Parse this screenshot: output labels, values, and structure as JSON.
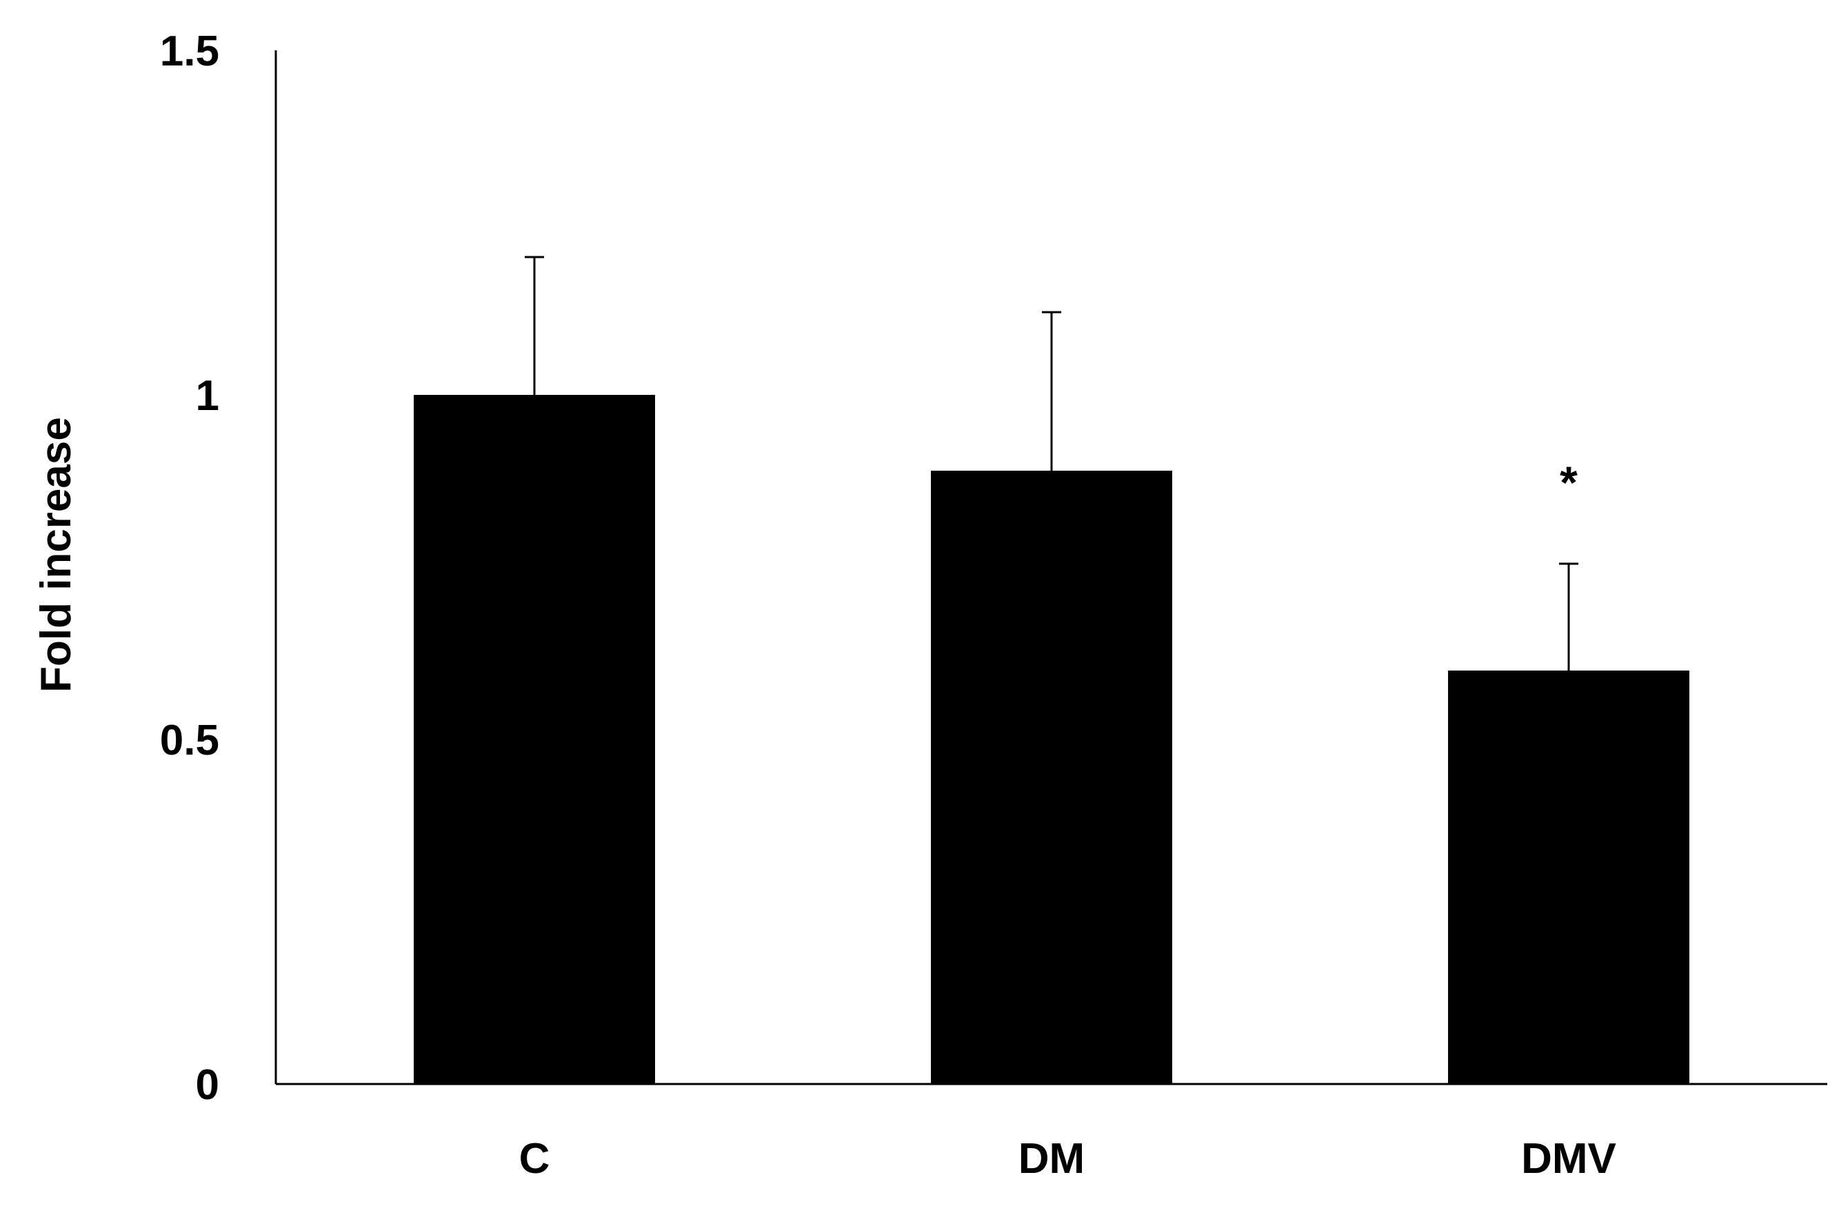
{
  "chart_data": {
    "type": "bar",
    "title": "",
    "xlabel": "",
    "ylabel": "Fold increase",
    "ylim": [
      0,
      1.5
    ],
    "yticks": [
      0,
      0.5,
      1,
      1.5
    ],
    "ytick_labels": [
      "0",
      "0.5",
      "1",
      "1.5"
    ],
    "categories": [
      "C",
      "DM",
      "DMV"
    ],
    "values": [
      1.0,
      0.89,
      0.6
    ],
    "errors": [
      0.2,
      0.23,
      0.155
    ],
    "annotations": [
      "",
      "",
      "*"
    ],
    "grid": false,
    "legend": "none",
    "colors": {
      "bar": "#000000",
      "axis": "#000000",
      "background": "#ffffff"
    }
  }
}
